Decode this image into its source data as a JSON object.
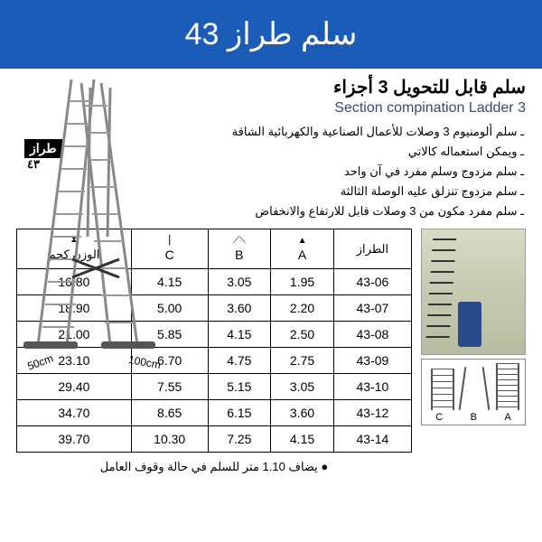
{
  "header": {
    "title": "سلم طراز 43"
  },
  "titles": {
    "arabic": "سلم قابل للتحويل 3 أجزاء",
    "english": "3 Section compination Ladder"
  },
  "bullets": [
    "سلم ألومنيوم 3 وصلات للأعمال الصناعية والكهربائية الشاقة",
    "ويمكن استعماله كالاتي",
    "سلم مزدوج وسلم مفرد في آن واحد",
    "سلم مزدوج تنزلق عليه الوصلة الثالثة",
    "سلم مفرد مكون من 3 وصلات قابل للارتفاع والانخفاض"
  ],
  "product": {
    "label_model": "طراز",
    "label_num": "٤٣",
    "dim_50": "50cm",
    "dim_100": "100cm"
  },
  "table": {
    "columns": [
      {
        "key": "model",
        "header": "الطراز",
        "icon": ""
      },
      {
        "key": "a",
        "header": "A",
        "icon": "▲"
      },
      {
        "key": "b",
        "header": "B",
        "icon": "⟋⟍"
      },
      {
        "key": "c",
        "header": "C",
        "icon": "⎮"
      },
      {
        "key": "weight",
        "header": "الوزن كجم",
        "icon": "⧗"
      }
    ],
    "rows": [
      {
        "model": "43-06",
        "a": "1.95",
        "b": "3.05",
        "c": "4.15",
        "weight": "16.80"
      },
      {
        "model": "43-07",
        "a": "2.20",
        "b": "3.60",
        "c": "5.00",
        "weight": "18.90"
      },
      {
        "model": "43-08",
        "a": "2.50",
        "b": "4.15",
        "c": "5.85",
        "weight": "21.00"
      },
      {
        "model": "43-09",
        "a": "2.75",
        "b": "4.75",
        "c": "6.70",
        "weight": "23.10"
      },
      {
        "model": "43-10",
        "a": "3.05",
        "b": "5.15",
        "c": "7.55",
        "weight": "29.40"
      },
      {
        "model": "43-12",
        "a": "3.60",
        "b": "6.15",
        "c": "8.65",
        "weight": "34.70"
      },
      {
        "model": "43-14",
        "a": "4.15",
        "b": "7.25",
        "c": "10.30",
        "weight": "39.70"
      }
    ]
  },
  "footnote": "يضاف 1.10 متر للسلم في حالة وقوف العامل",
  "schematic": {
    "a": "A",
    "b": "B",
    "c": "C"
  },
  "colors": {
    "header_bg": "#1a5cb8",
    "header_fg": "#ffffff",
    "title_en": "#3a4a6a",
    "border": "#000000"
  }
}
